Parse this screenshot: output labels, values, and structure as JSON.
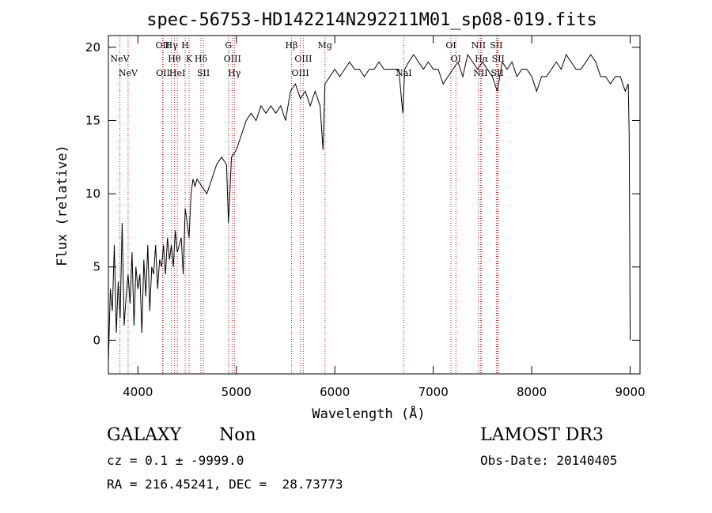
{
  "chart_data": {
    "type": "line",
    "title": "spec-56753-HD142214N292211M01_sp08-019.fits",
    "xlabel": "Wavelength (Å)",
    "ylabel": "Flux (relative)",
    "xlim": [
      3700,
      9100
    ],
    "ylim": [
      -2.3,
      20.8
    ],
    "xticks": [
      4000,
      5000,
      6000,
      7000,
      8000,
      9000
    ],
    "yticks": [
      0,
      5,
      10,
      15,
      20
    ],
    "grid": false,
    "line_color": "#000000",
    "marker_color": "#b22222",
    "series": [
      {
        "x": [
          3700,
          3720,
          3740,
          3760,
          3780,
          3800,
          3820,
          3840,
          3860,
          3880,
          3900,
          3920,
          3940,
          3960,
          3980,
          4000,
          4020,
          4040,
          4060,
          4080,
          4100,
          4120,
          4140,
          4160,
          4180,
          4200,
          4220,
          4240,
          4260,
          4280,
          4300,
          4320,
          4340,
          4360,
          4380,
          4400,
          4420,
          4440,
          4460,
          4480,
          4500,
          4520,
          4540,
          4560,
          4580,
          4600,
          4650,
          4700,
          4750,
          4800,
          4850,
          4900,
          4920,
          4950,
          5000,
          5050,
          5100,
          5150,
          5200,
          5250,
          5300,
          5350,
          5400,
          5450,
          5500,
          5550,
          5600,
          5650,
          5700,
          5750,
          5800,
          5850,
          5880,
          5900,
          5950,
          6000,
          6050,
          6100,
          6150,
          6200,
          6250,
          6300,
          6350,
          6400,
          6450,
          6500,
          6550,
          6600,
          6650,
          6690,
          6710,
          6750,
          6800,
          6850,
          6900,
          6950,
          7000,
          7050,
          7100,
          7150,
          7200,
          7250,
          7300,
          7350,
          7400,
          7450,
          7500,
          7550,
          7600,
          7650,
          7700,
          7750,
          7800,
          7850,
          7900,
          7950,
          8000,
          8050,
          8100,
          8150,
          8200,
          8250,
          8300,
          8350,
          8400,
          8450,
          8500,
          8550,
          8600,
          8650,
          8700,
          8750,
          8800,
          8850,
          8900,
          8950,
          8980,
          8990,
          9000
        ],
        "y": [
          -1.5,
          3.5,
          2.0,
          6.5,
          0.5,
          4.0,
          1.5,
          8.0,
          1.0,
          3.0,
          4.5,
          2.5,
          6.0,
          1.0,
          5.0,
          3.5,
          4.5,
          0.5,
          5.5,
          3.0,
          6.5,
          2.0,
          5.0,
          4.5,
          6.5,
          3.5,
          5.5,
          5.0,
          6.5,
          4.5,
          7.0,
          5.5,
          6.5,
          5.0,
          7.5,
          6.0,
          6.5,
          7.0,
          4.5,
          9.0,
          8.0,
          7.0,
          10.0,
          11.0,
          10.5,
          11.0,
          10.5,
          10.0,
          11.0,
          12.0,
          12.5,
          12.0,
          8.0,
          12.5,
          13.0,
          14.0,
          15.0,
          15.5,
          15.0,
          16.0,
          15.5,
          16.0,
          15.5,
          16.0,
          15.0,
          17.0,
          17.5,
          16.5,
          17.0,
          16.0,
          17.0,
          16.0,
          13.0,
          17.5,
          18.0,
          18.5,
          18.0,
          18.5,
          19.0,
          18.5,
          18.5,
          18.0,
          18.5,
          18.5,
          19.0,
          18.5,
          18.5,
          18.5,
          18.5,
          15.5,
          18.5,
          19.0,
          19.5,
          19.0,
          18.5,
          19.0,
          18.5,
          18.5,
          17.5,
          18.0,
          18.5,
          19.0,
          18.0,
          19.5,
          19.0,
          18.5,
          19.0,
          18.5,
          18.0,
          17.0,
          19.0,
          18.5,
          19.0,
          18.0,
          18.5,
          18.5,
          18.0,
          17.0,
          18.0,
          18.0,
          18.5,
          19.0,
          18.5,
          19.5,
          19.0,
          18.5,
          18.5,
          19.0,
          19.5,
          19.0,
          18.0,
          18.0,
          17.5,
          18.0,
          18.0,
          17.0,
          17.5,
          14.0,
          0.0
        ]
      }
    ],
    "line_markers": [
      {
        "label": "NeV",
        "wavelength": 3426,
        "row": 1,
        "visible_label": false
      },
      {
        "label": "NeV",
        "wavelength": 3817,
        "row": 1
      },
      {
        "label": "NeV",
        "wavelength": 3900,
        "row": 2
      },
      {
        "label": "OII",
        "wavelength": 4250,
        "row": 0
      },
      {
        "label": "OII",
        "wavelength": 4255,
        "row": 2
      },
      {
        "label": "Hγ",
        "wavelength": 4340,
        "row": 0
      },
      {
        "label": "Hθ",
        "wavelength": 4370,
        "row": 1
      },
      {
        "label": "HeI",
        "wavelength": 4400,
        "row": 2
      },
      {
        "label": "H",
        "wavelength": 4480,
        "row": 0
      },
      {
        "label": "K",
        "wavelength": 4520,
        "row": 1
      },
      {
        "label": "Hδ",
        "wavelength": 4640,
        "row": 1
      },
      {
        "label": "SII",
        "wavelength": 4665,
        "row": 2
      },
      {
        "label": "G",
        "wavelength": 4920,
        "row": 0
      },
      {
        "label": "OIII",
        "wavelength": 4960,
        "row": 1
      },
      {
        "label": "Hγ",
        "wavelength": 4980,
        "row": 2
      },
      {
        "label": "Hβ",
        "wavelength": 5560,
        "row": 0
      },
      {
        "label": "OIII",
        "wavelength": 5680,
        "row": 1
      },
      {
        "label": "OIII",
        "wavelength": 5650,
        "row": 2
      },
      {
        "label": "Mg",
        "wavelength": 5900,
        "row": 0
      },
      {
        "label": "NaI",
        "wavelength": 6700,
        "row": 2
      },
      {
        "label": "OI",
        "wavelength": 7180,
        "row": 0
      },
      {
        "label": "OI",
        "wavelength": 7230,
        "row": 1
      },
      {
        "label": "NII",
        "wavelength": 7460,
        "row": 0
      },
      {
        "label": "Hα",
        "wavelength": 7490,
        "row": 1
      },
      {
        "label": "NII",
        "wavelength": 7480,
        "row": 2
      },
      {
        "label": "SII",
        "wavelength": 7640,
        "row": 0
      },
      {
        "label": "SII",
        "wavelength": 7660,
        "row": 1
      },
      {
        "label": "SII",
        "wavelength": 7650,
        "row": 2
      }
    ]
  },
  "info": {
    "object_class": "GALAXY",
    "subclass": "Non",
    "survey": "LAMOST DR3",
    "cz_line": "cz = 0.1 ± -9999.0",
    "obs_date_line": "Obs-Date: 20140405",
    "radec_line": "RA = 216.45241, DEC =  28.73773"
  }
}
